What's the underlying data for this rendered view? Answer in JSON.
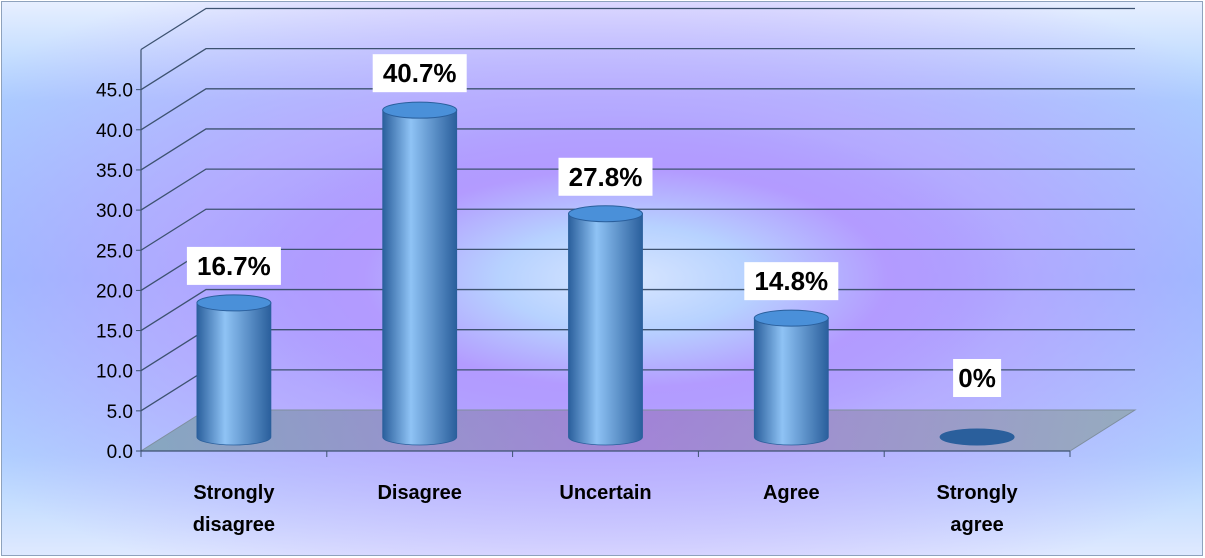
{
  "chart_data": {
    "type": "bar",
    "style": "3d-cylinder",
    "categories": [
      "Strongly disagree",
      "Disagree",
      "Uncertain",
      "Agree",
      "Strongly agree"
    ],
    "category_label_lines": [
      [
        "Strongly",
        "disagree"
      ],
      [
        "Disagree"
      ],
      [
        "Uncertain"
      ],
      [
        "Agree"
      ],
      [
        "Strongly",
        "agree"
      ]
    ],
    "values": [
      16.7,
      40.7,
      27.8,
      14.8,
      0
    ],
    "data_labels": [
      "16.7%",
      "40.7%",
      "27.8%",
      "14.8%",
      "0%"
    ],
    "y_ticks": [
      "0.0",
      "5.0",
      "10.0",
      "15.0",
      "20.0",
      "25.0",
      "30.0",
      "35.0",
      "40.0",
      "45.0"
    ],
    "ylim": [
      0,
      45
    ],
    "title": "",
    "xlabel": "",
    "ylabel": "",
    "grid": true,
    "legend": false,
    "colors": {
      "bar": "#4a90d9",
      "bar_dark": "#2a5f9c",
      "bar_light": "#8fc3f5",
      "gridline": "#3d5270",
      "floor": "#8fa6b8",
      "label_box": "#ffffff"
    }
  }
}
